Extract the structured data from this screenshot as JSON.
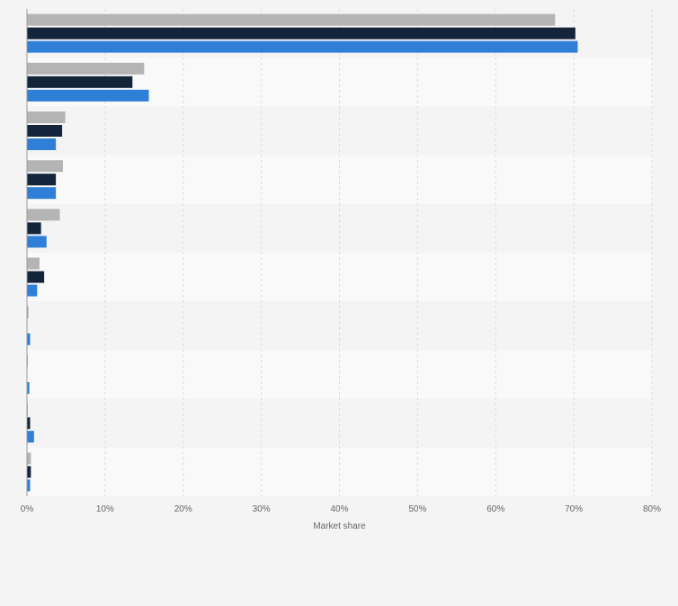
{
  "chart_data": {
    "type": "bar",
    "orientation": "horizontal",
    "title": "",
    "xlabel": "Market share",
    "ylabel": "",
    "xlim": [
      0,
      80
    ],
    "x_ticks": [
      0,
      10,
      20,
      30,
      40,
      50,
      60,
      70,
      80
    ],
    "tick_suffix": "%",
    "grid": true,
    "legend": "none",
    "categories": [
      "",
      "",
      "",
      "",
      "",
      "",
      "",
      "",
      "",
      ""
    ],
    "series": [
      {
        "name": "",
        "color": "#b4b4b4",
        "values": [
          67.6,
          15.0,
          4.9,
          4.6,
          4.2,
          1.6,
          0.2,
          0.1,
          0.1,
          0.5
        ]
      },
      {
        "name": "",
        "color": "#14243a",
        "values": [
          70.2,
          13.5,
          4.5,
          3.7,
          1.8,
          2.2,
          0.0,
          0.0,
          0.4,
          0.5
        ]
      },
      {
        "name": "",
        "color": "#2f7ed8",
        "values": [
          70.5,
          15.6,
          3.7,
          3.7,
          2.5,
          1.3,
          0.4,
          0.3,
          0.9,
          0.4
        ]
      }
    ]
  }
}
